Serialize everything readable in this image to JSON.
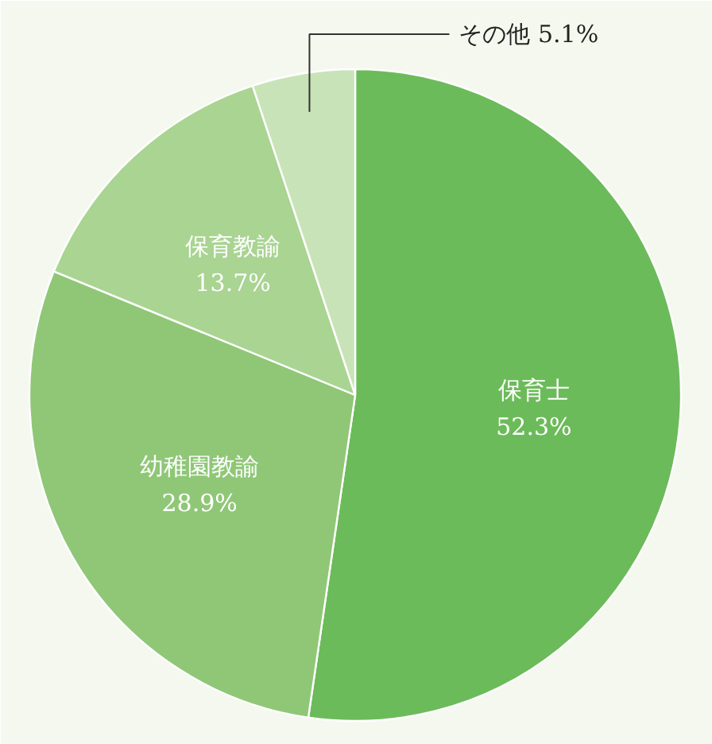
{
  "chart_data": {
    "type": "pie",
    "categories": [
      "保育士",
      "幼稚園教諭",
      "保育教諭",
      "その他"
    ],
    "values": [
      52.3,
      28.9,
      13.7,
      5.1
    ],
    "colors": [
      "#6cbb5a",
      "#8fc777",
      "#a9d492",
      "#c9e3b9"
    ],
    "value_labels": [
      "52.3%",
      "28.9%",
      "13.7%",
      "5.1%"
    ]
  }
}
